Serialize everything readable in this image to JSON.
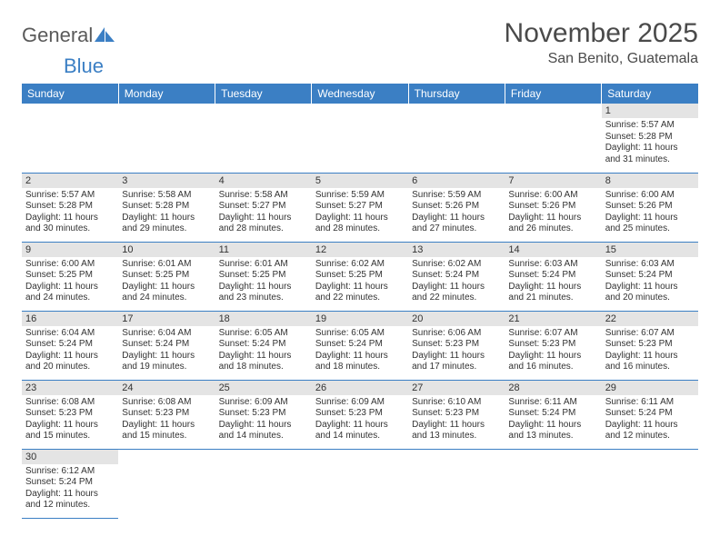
{
  "logo": {
    "text1": "General",
    "text2": "Blue"
  },
  "title": "November 2025",
  "location": "San Benito, Guatemala",
  "weekdays": [
    "Sunday",
    "Monday",
    "Tuesday",
    "Wednesday",
    "Thursday",
    "Friday",
    "Saturday"
  ],
  "colors": {
    "header_bg": "#3b7fc4",
    "header_text": "#ffffff",
    "daynum_bg": "#e4e4e4",
    "border": "#3b7fc4",
    "title_text": "#4a4a4a",
    "body_text": "#333333",
    "logo_gray": "#5a5a5a",
    "logo_blue": "#3b7fc4",
    "background": "#ffffff"
  },
  "fonts": {
    "title_size": 30,
    "location_size": 16,
    "weekday_size": 12,
    "daynum_size": 11,
    "cell_size": 10
  },
  "grid": {
    "cols": 7,
    "rows": 6,
    "first_day_col": 6
  },
  "days": [
    {
      "n": "1",
      "sunrise": "Sunrise: 5:57 AM",
      "sunset": "Sunset: 5:28 PM",
      "daylight1": "Daylight: 11 hours",
      "daylight2": "and 31 minutes."
    },
    {
      "n": "2",
      "sunrise": "Sunrise: 5:57 AM",
      "sunset": "Sunset: 5:28 PM",
      "daylight1": "Daylight: 11 hours",
      "daylight2": "and 30 minutes."
    },
    {
      "n": "3",
      "sunrise": "Sunrise: 5:58 AM",
      "sunset": "Sunset: 5:28 PM",
      "daylight1": "Daylight: 11 hours",
      "daylight2": "and 29 minutes."
    },
    {
      "n": "4",
      "sunrise": "Sunrise: 5:58 AM",
      "sunset": "Sunset: 5:27 PM",
      "daylight1": "Daylight: 11 hours",
      "daylight2": "and 28 minutes."
    },
    {
      "n": "5",
      "sunrise": "Sunrise: 5:59 AM",
      "sunset": "Sunset: 5:27 PM",
      "daylight1": "Daylight: 11 hours",
      "daylight2": "and 28 minutes."
    },
    {
      "n": "6",
      "sunrise": "Sunrise: 5:59 AM",
      "sunset": "Sunset: 5:26 PM",
      "daylight1": "Daylight: 11 hours",
      "daylight2": "and 27 minutes."
    },
    {
      "n": "7",
      "sunrise": "Sunrise: 6:00 AM",
      "sunset": "Sunset: 5:26 PM",
      "daylight1": "Daylight: 11 hours",
      "daylight2": "and 26 minutes."
    },
    {
      "n": "8",
      "sunrise": "Sunrise: 6:00 AM",
      "sunset": "Sunset: 5:26 PM",
      "daylight1": "Daylight: 11 hours",
      "daylight2": "and 25 minutes."
    },
    {
      "n": "9",
      "sunrise": "Sunrise: 6:00 AM",
      "sunset": "Sunset: 5:25 PM",
      "daylight1": "Daylight: 11 hours",
      "daylight2": "and 24 minutes."
    },
    {
      "n": "10",
      "sunrise": "Sunrise: 6:01 AM",
      "sunset": "Sunset: 5:25 PM",
      "daylight1": "Daylight: 11 hours",
      "daylight2": "and 24 minutes."
    },
    {
      "n": "11",
      "sunrise": "Sunrise: 6:01 AM",
      "sunset": "Sunset: 5:25 PM",
      "daylight1": "Daylight: 11 hours",
      "daylight2": "and 23 minutes."
    },
    {
      "n": "12",
      "sunrise": "Sunrise: 6:02 AM",
      "sunset": "Sunset: 5:25 PM",
      "daylight1": "Daylight: 11 hours",
      "daylight2": "and 22 minutes."
    },
    {
      "n": "13",
      "sunrise": "Sunrise: 6:02 AM",
      "sunset": "Sunset: 5:24 PM",
      "daylight1": "Daylight: 11 hours",
      "daylight2": "and 22 minutes."
    },
    {
      "n": "14",
      "sunrise": "Sunrise: 6:03 AM",
      "sunset": "Sunset: 5:24 PM",
      "daylight1": "Daylight: 11 hours",
      "daylight2": "and 21 minutes."
    },
    {
      "n": "15",
      "sunrise": "Sunrise: 6:03 AM",
      "sunset": "Sunset: 5:24 PM",
      "daylight1": "Daylight: 11 hours",
      "daylight2": "and 20 minutes."
    },
    {
      "n": "16",
      "sunrise": "Sunrise: 6:04 AM",
      "sunset": "Sunset: 5:24 PM",
      "daylight1": "Daylight: 11 hours",
      "daylight2": "and 20 minutes."
    },
    {
      "n": "17",
      "sunrise": "Sunrise: 6:04 AM",
      "sunset": "Sunset: 5:24 PM",
      "daylight1": "Daylight: 11 hours",
      "daylight2": "and 19 minutes."
    },
    {
      "n": "18",
      "sunrise": "Sunrise: 6:05 AM",
      "sunset": "Sunset: 5:24 PM",
      "daylight1": "Daylight: 11 hours",
      "daylight2": "and 18 minutes."
    },
    {
      "n": "19",
      "sunrise": "Sunrise: 6:05 AM",
      "sunset": "Sunset: 5:24 PM",
      "daylight1": "Daylight: 11 hours",
      "daylight2": "and 18 minutes."
    },
    {
      "n": "20",
      "sunrise": "Sunrise: 6:06 AM",
      "sunset": "Sunset: 5:23 PM",
      "daylight1": "Daylight: 11 hours",
      "daylight2": "and 17 minutes."
    },
    {
      "n": "21",
      "sunrise": "Sunrise: 6:07 AM",
      "sunset": "Sunset: 5:23 PM",
      "daylight1": "Daylight: 11 hours",
      "daylight2": "and 16 minutes."
    },
    {
      "n": "22",
      "sunrise": "Sunrise: 6:07 AM",
      "sunset": "Sunset: 5:23 PM",
      "daylight1": "Daylight: 11 hours",
      "daylight2": "and 16 minutes."
    },
    {
      "n": "23",
      "sunrise": "Sunrise: 6:08 AM",
      "sunset": "Sunset: 5:23 PM",
      "daylight1": "Daylight: 11 hours",
      "daylight2": "and 15 minutes."
    },
    {
      "n": "24",
      "sunrise": "Sunrise: 6:08 AM",
      "sunset": "Sunset: 5:23 PM",
      "daylight1": "Daylight: 11 hours",
      "daylight2": "and 15 minutes."
    },
    {
      "n": "25",
      "sunrise": "Sunrise: 6:09 AM",
      "sunset": "Sunset: 5:23 PM",
      "daylight1": "Daylight: 11 hours",
      "daylight2": "and 14 minutes."
    },
    {
      "n": "26",
      "sunrise": "Sunrise: 6:09 AM",
      "sunset": "Sunset: 5:23 PM",
      "daylight1": "Daylight: 11 hours",
      "daylight2": "and 14 minutes."
    },
    {
      "n": "27",
      "sunrise": "Sunrise: 6:10 AM",
      "sunset": "Sunset: 5:23 PM",
      "daylight1": "Daylight: 11 hours",
      "daylight2": "and 13 minutes."
    },
    {
      "n": "28",
      "sunrise": "Sunrise: 6:11 AM",
      "sunset": "Sunset: 5:24 PM",
      "daylight1": "Daylight: 11 hours",
      "daylight2": "and 13 minutes."
    },
    {
      "n": "29",
      "sunrise": "Sunrise: 6:11 AM",
      "sunset": "Sunset: 5:24 PM",
      "daylight1": "Daylight: 11 hours",
      "daylight2": "and 12 minutes."
    },
    {
      "n": "30",
      "sunrise": "Sunrise: 6:12 AM",
      "sunset": "Sunset: 5:24 PM",
      "daylight1": "Daylight: 11 hours",
      "daylight2": "and 12 minutes."
    }
  ]
}
